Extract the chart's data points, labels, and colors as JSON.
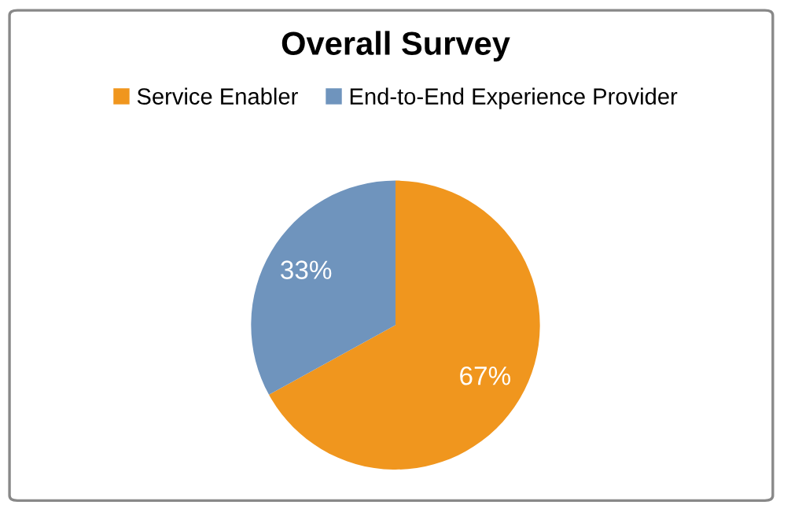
{
  "chart_data": {
    "type": "pie",
    "title": "Overall Survey",
    "categories": [
      "Service Enabler",
      "End-to-End Experience Provider"
    ],
    "values": [
      67,
      33
    ],
    "colors": [
      "#f0961e",
      "#6f94bd"
    ],
    "value_labels": [
      "67%",
      "33%"
    ],
    "legend": "top"
  }
}
